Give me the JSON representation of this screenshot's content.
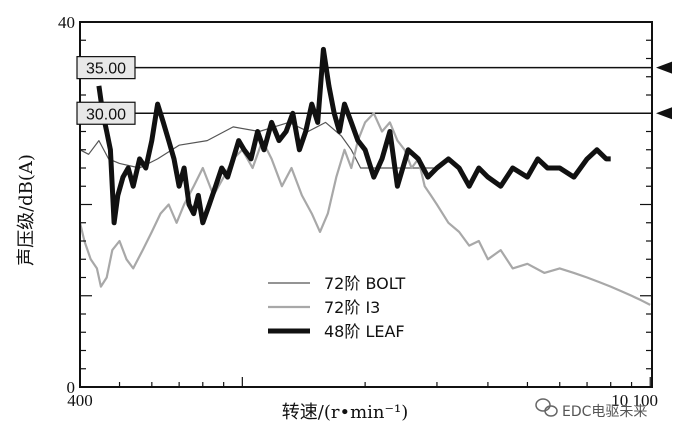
{
  "chart_data": {
    "type": "line",
    "xlabel": "转速/(r•min⁻¹)",
    "ylabel": "声压级/dB(A)",
    "xlim": [
      400,
      10100
    ],
    "ylim": [
      0,
      40
    ],
    "x_scale": "log",
    "x_ticks": [
      {
        "value": 400,
        "label": "400"
      },
      {
        "value": 10100,
        "label": "10 100"
      }
    ],
    "y_ticks": [
      {
        "value": 0,
        "label": "0"
      },
      {
        "value": 40,
        "label": "40"
      }
    ],
    "reference_lines": [
      {
        "value": 35,
        "label": "35.00"
      },
      {
        "value": 30,
        "label": "30.00"
      }
    ],
    "series": [
      {
        "name": "72阶 BOLT",
        "color": "#555555",
        "width": 1.2,
        "x": [
          400,
          420,
          445,
          470,
          500,
          560,
          620,
          700,
          820,
          950,
          1100,
          1300,
          1450,
          1600,
          1750,
          1850,
          1950,
          2100,
          2300,
          2500,
          3000
        ],
        "y": [
          26,
          25.5,
          27,
          25,
          24.5,
          24,
          25,
          26.5,
          27,
          28.5,
          28,
          29,
          28,
          29,
          27.5,
          26,
          24,
          24,
          24,
          24,
          24
        ]
      },
      {
        "name": "72阶 I3",
        "color": "#a8a8a8",
        "width": 2.2,
        "x": [
          400,
          410,
          425,
          440,
          450,
          465,
          480,
          500,
          520,
          540,
          570,
          600,
          630,
          660,
          690,
          720,
          760,
          800,
          850,
          900,
          950,
          1000,
          1060,
          1120,
          1180,
          1250,
          1320,
          1400,
          1480,
          1550,
          1620,
          1700,
          1780,
          1850,
          1920,
          2000,
          2100,
          2200,
          2300,
          2400,
          2500,
          2600,
          2700,
          2800,
          2900,
          3000,
          3200,
          3400,
          3600,
          3800,
          4000,
          4300,
          4600,
          5000,
          5500,
          6000,
          6500,
          7000,
          7500,
          8000,
          8500,
          9000,
          9500,
          10000
        ],
        "y": [
          18,
          16,
          14,
          13,
          11,
          12,
          15,
          16,
          14,
          13,
          15,
          17,
          19,
          20,
          18,
          20,
          22,
          24,
          21,
          23,
          25,
          26,
          24,
          27,
          25,
          22,
          24,
          21,
          19,
          17,
          19,
          23,
          26,
          24,
          27,
          29,
          30,
          28,
          29,
          27,
          26,
          24,
          25,
          22,
          21,
          20,
          18,
          17,
          15.5,
          16,
          14,
          15,
          13,
          13.5,
          12.5,
          13,
          12.5,
          12,
          11.5,
          11,
          10.5,
          10,
          9.5,
          9
        ]
      },
      {
        "name": "48阶 LEAF",
        "color": "#111111",
        "width": 5,
        "x": [
          445,
          455,
          465,
          475,
          485,
          495,
          510,
          525,
          540,
          560,
          580,
          600,
          620,
          640,
          660,
          680,
          700,
          720,
          740,
          760,
          780,
          800,
          830,
          860,
          890,
          920,
          950,
          980,
          1010,
          1050,
          1090,
          1130,
          1180,
          1230,
          1280,
          1330,
          1380,
          1430,
          1480,
          1530,
          1580,
          1630,
          1680,
          1730,
          1780,
          1850,
          1920,
          2000,
          2100,
          2200,
          2300,
          2400,
          2550,
          2700,
          2850,
          3000,
          3200,
          3400,
          3600,
          3800,
          4000,
          4300,
          4600,
          5000,
          5300,
          5600,
          6000,
          6500,
          7000,
          7400,
          7800,
          8000
        ],
        "y": [
          33,
          30,
          28,
          26,
          18,
          21,
          23,
          24,
          22,
          25,
          24,
          27,
          31,
          29,
          27,
          25,
          22,
          24,
          20,
          19,
          21,
          18,
          20,
          22,
          24,
          23,
          25,
          27,
          26,
          25,
          28,
          26,
          29,
          27,
          28,
          30,
          26,
          28,
          31,
          29,
          37,
          33,
          30,
          28,
          31,
          29,
          27,
          26,
          23,
          25,
          28,
          22,
          26,
          25,
          23,
          24,
          25,
          24,
          22,
          24,
          23,
          22,
          24,
          23,
          25,
          24,
          24,
          23,
          25,
          26,
          25,
          25
        ]
      }
    ]
  },
  "watermark": "EDC电驱未来",
  "watermark_icon": "wechat-icon"
}
